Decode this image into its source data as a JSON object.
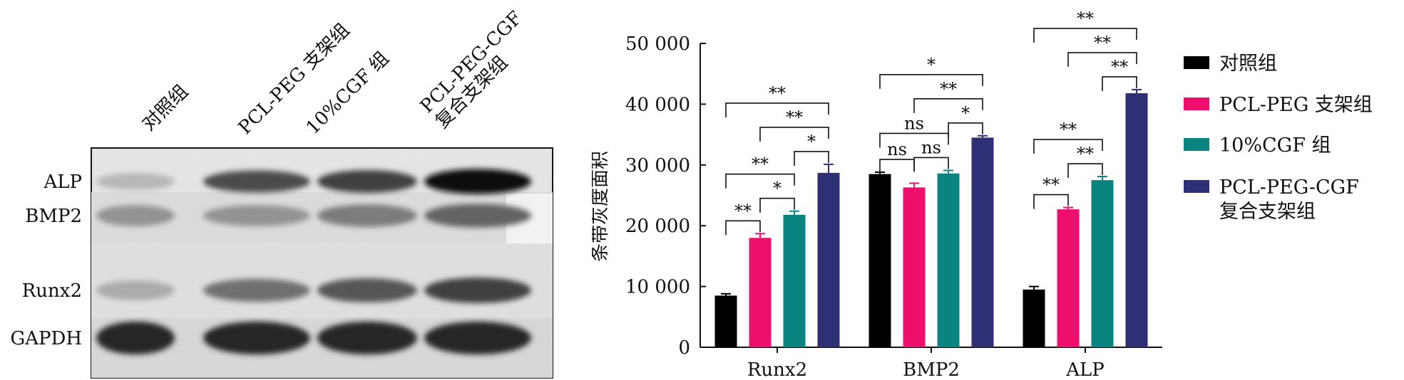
{
  "blot": {
    "lane_labels": [
      "对照组",
      "PCL-PEG 支架组",
      "10%CGF 组",
      "PCL-PEG-CGF\n复合支架组"
    ],
    "row_labels": [
      "ALP",
      "BMP2",
      "Runx2",
      "GAPDH"
    ],
    "band_intensity": [
      [
        0.3,
        0.75,
        0.8,
        1.0
      ],
      [
        0.45,
        0.45,
        0.55,
        0.65
      ],
      [
        0.35,
        0.6,
        0.7,
        0.8
      ],
      [
        0.9,
        0.9,
        0.9,
        0.9
      ]
    ]
  },
  "chart_data": {
    "type": "bar",
    "title": "",
    "xlabel": "",
    "ylabel": "条带灰度面积",
    "ylim": [
      0,
      50000
    ],
    "yticks": [
      0,
      10000,
      20000,
      30000,
      40000,
      50000
    ],
    "ytick_labels": [
      "0",
      "10 000",
      "20 000",
      "30 000",
      "40 000",
      "50 000"
    ],
    "categories": [
      "Runx2",
      "BMP2",
      "ALP"
    ],
    "legend_position": "right",
    "series": [
      {
        "name": "对照组",
        "color": "#000000",
        "values": [
          8500,
          28500,
          9500
        ],
        "errors": [
          300,
          300,
          500
        ]
      },
      {
        "name": "PCL-PEG 支架组",
        "color": "#ee0e6e",
        "values": [
          18000,
          26300,
          22700
        ],
        "errors": [
          700,
          700,
          300
        ]
      },
      {
        "name": "10%CGF 组",
        "color": "#0a8480",
        "values": [
          21800,
          28600,
          27500
        ],
        "errors": [
          600,
          500,
          600
        ]
      },
      {
        "name": "PCL-PEG-CGF\n复合支架组",
        "color": "#2e2f75",
        "values": [
          28700,
          34500,
          41800
        ],
        "errors": [
          1400,
          300,
          600
        ]
      }
    ],
    "significance": [
      {
        "category": 0,
        "from": 0,
        "to": 1,
        "label": "**"
      },
      {
        "category": 0,
        "from": 1,
        "to": 2,
        "label": "*"
      },
      {
        "category": 0,
        "from": 0,
        "to": 2,
        "label": "**"
      },
      {
        "category": 0,
        "from": 2,
        "to": 3,
        "label": "*"
      },
      {
        "category": 0,
        "from": 1,
        "to": 3,
        "label": "**"
      },
      {
        "category": 0,
        "from": 0,
        "to": 3,
        "label": "**"
      },
      {
        "category": 1,
        "from": 0,
        "to": 1,
        "label": "ns"
      },
      {
        "category": 1,
        "from": 1,
        "to": 2,
        "label": "ns"
      },
      {
        "category": 1,
        "from": 0,
        "to": 2,
        "label": "ns"
      },
      {
        "category": 1,
        "from": 2,
        "to": 3,
        "label": "*"
      },
      {
        "category": 1,
        "from": 1,
        "to": 3,
        "label": "**"
      },
      {
        "category": 1,
        "from": 0,
        "to": 3,
        "label": "*"
      },
      {
        "category": 2,
        "from": 0,
        "to": 1,
        "label": "**"
      },
      {
        "category": 2,
        "from": 1,
        "to": 2,
        "label": "**"
      },
      {
        "category": 2,
        "from": 0,
        "to": 2,
        "label": "**"
      },
      {
        "category": 2,
        "from": 2,
        "to": 3,
        "label": "**"
      },
      {
        "category": 2,
        "from": 1,
        "to": 3,
        "label": "**"
      },
      {
        "category": 2,
        "from": 0,
        "to": 3,
        "label": "**"
      }
    ]
  }
}
